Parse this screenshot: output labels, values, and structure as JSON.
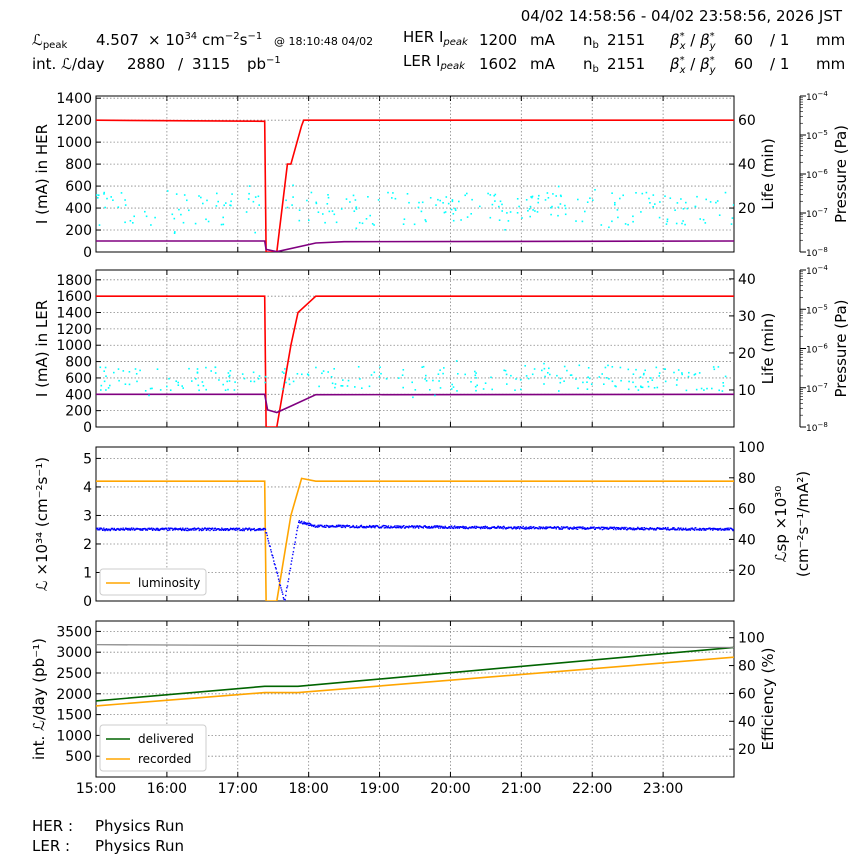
{
  "header": {
    "range": "04/02 14:58:56 - 04/02 23:58:56, 2026 JST",
    "lpeak_label": "ℒ",
    "lpeak_sub": "peak",
    "lpeak_value": "4.507",
    "lpeak_times": "× 10",
    "lpeak_exp": "34",
    "lpeak_unit_a": "cm",
    "lpeak_unit_exp1": "−2",
    "lpeak_unit_b": "s",
    "lpeak_unit_exp2": "−1",
    "lpeak_at": "@ 18:10:48 04/02",
    "intl_label": "int. ℒ/day",
    "intl_value": "2880",
    "intl_sep": "/",
    "intl_total": "3115",
    "intl_unit": "pb",
    "intl_unit_exp": "−1",
    "her": {
      "label": "HER I",
      "sub": "peak",
      "value": "1200",
      "unit": "mA",
      "nb_label": "n",
      "nb_sub": "b",
      "nb": "2151",
      "beta_label": "β",
      "beta_x": "60",
      "beta_sep": "/ 1",
      "beta_unit": "mm"
    },
    "ler": {
      "label": "LER I",
      "sub": "peak",
      "value": "1602",
      "unit": "mA",
      "nb_label": "n",
      "nb_sub": "b",
      "nb": "2151",
      "beta_label": "β",
      "beta_x": "60",
      "beta_sep": "/ 1",
      "beta_unit": "mm"
    }
  },
  "footer": {
    "her_label": "HER :",
    "her_status": "Physics Run",
    "ler_label": "LER :",
    "ler_status": "Physics Run"
  },
  "colors": {
    "current": "#ff0000",
    "life": "#800080",
    "pressure": "#00ffff",
    "luminosity": "#ffa500",
    "specific": "#0000ff",
    "delivered": "#006400",
    "recorded": "#ffa500",
    "efficiency": "#808080"
  },
  "chart_data": [
    {
      "type": "line",
      "x_ticks": [
        "15:00",
        "16:00",
        "17:00",
        "18:00",
        "19:00",
        "20:00",
        "21:00",
        "22:00",
        "23:00"
      ],
      "ylabel": "I (mA) in HER",
      "ylim": [
        0,
        1420
      ],
      "y_ticks": [
        "0",
        "200",
        "400",
        "600",
        "800",
        "1000",
        "1200",
        "1400"
      ],
      "y2label": "Life (min)",
      "y2lim": [
        0,
        71
      ],
      "y2_ticks": [
        "20",
        "40",
        "60"
      ],
      "y3label": "Pressure (Pa)",
      "y3_ticks": [
        "10",
        "10",
        "10",
        "10",
        "10",
        "10",
        "10"
      ],
      "y3_exps": [
        "−8",
        "−7",
        "−6",
        "−5",
        "−4",
        "",
        ""
      ],
      "y3_ticks_used": 5,
      "grid": true,
      "series": [
        {
          "name": "current",
          "x": [
            15.0,
            17.38,
            17.4,
            17.55,
            17.7,
            17.75,
            17.9,
            17.93,
            18.1,
            24.0
          ],
          "values": [
            1200,
            1190,
            0,
            0,
            800,
            800,
            1150,
            1200,
            1200,
            1200
          ]
        },
        {
          "name": "life",
          "x": [
            15.0,
            17.38,
            17.4,
            17.55,
            18.1,
            18.5,
            24.0
          ],
          "values": [
            8.5,
            8.5,
            2.0,
            0.2,
            7.0,
            8.0,
            8.5
          ]
        },
        {
          "name": "pressure_scatter",
          "y_mean": 400,
          "y_spread": 150
        }
      ]
    },
    {
      "type": "line",
      "x_ticks": [
        "15:00",
        "16:00",
        "17:00",
        "18:00",
        "19:00",
        "20:00",
        "21:00",
        "22:00",
        "23:00"
      ],
      "ylabel": "I (mA) in LER",
      "ylim": [
        0,
        1920
      ],
      "y_ticks": [
        "0",
        "200",
        "400",
        "600",
        "800",
        "1000",
        "1200",
        "1400",
        "1600",
        "1800"
      ],
      "y2label": "Life (min)",
      "y2lim": [
        0,
        42.4
      ],
      "y2_ticks": [
        "10",
        "20",
        "30",
        "40"
      ],
      "y3label": "Pressure (Pa)",
      "y3_ticks": [
        "10",
        "10",
        "10",
        "10",
        "10"
      ],
      "y3_exps": [
        "−8",
        "−7",
        "−6",
        "−5",
        "−4"
      ],
      "grid": true,
      "series": [
        {
          "name": "current",
          "x": [
            15.0,
            17.38,
            17.4,
            17.55,
            17.75,
            17.85,
            18.1,
            24.0
          ],
          "values": [
            1600,
            1600,
            0,
            0,
            1000,
            1400,
            1600,
            1600
          ]
        },
        {
          "name": "life",
          "x": [
            15.0,
            17.38,
            17.42,
            17.55,
            17.75,
            18.1,
            24.0
          ],
          "values": [
            8.6,
            8.6,
            4.5,
            3.8,
            5.5,
            8.5,
            8.6
          ]
        },
        {
          "name": "pressure_scatter",
          "y_mean": 600,
          "y_spread": 150
        }
      ]
    },
    {
      "type": "line",
      "x_ticks": [
        "15:00",
        "16:00",
        "17:00",
        "18:00",
        "19:00",
        "20:00",
        "21:00",
        "22:00",
        "23:00"
      ],
      "ylabel": "ℒ ×10³⁴ (cm⁻²s⁻¹)",
      "ylim": [
        0,
        5.4
      ],
      "y_ticks": [
        "0",
        "1",
        "2",
        "3",
        "4",
        "5"
      ],
      "y2label_a": "ℒsp ×10³⁰",
      "y2label_b": "(cm⁻²s⁻¹/mA²)",
      "y2lim": [
        0,
        100
      ],
      "y2_ticks": [
        "20",
        "40",
        "60",
        "80",
        "100"
      ],
      "grid": true,
      "legend": {
        "placement": "bottom-left",
        "entries": [
          "luminosity"
        ]
      },
      "series": [
        {
          "name": "luminosity",
          "x": [
            15.0,
            17.38,
            17.4,
            17.55,
            17.75,
            17.9,
            18.1,
            24.0
          ],
          "values": [
            4.2,
            4.2,
            0,
            0,
            3.0,
            4.3,
            4.2,
            4.2
          ]
        },
        {
          "name": "specific",
          "x": [
            15.0,
            17.38,
            17.65,
            17.85,
            18.1,
            24.0
          ],
          "values": [
            47,
            47,
            0,
            52,
            49,
            47
          ]
        }
      ]
    },
    {
      "type": "line",
      "x_ticks": [
        "15:00",
        "16:00",
        "17:00",
        "18:00",
        "19:00",
        "20:00",
        "21:00",
        "22:00",
        "23:00"
      ],
      "ylabel": "int. ℒ/day (pb⁻¹)",
      "ylim": [
        0,
        3750
      ],
      "y_ticks": [
        "500",
        "1000",
        "1500",
        "2000",
        "2500",
        "3000",
        "3500"
      ],
      "y2label": "Efficiency (%)",
      "y2lim": [
        0,
        112
      ],
      "y2_ticks": [
        "20",
        "40",
        "60",
        "80",
        "100"
      ],
      "grid": true,
      "legend": {
        "placement": "bottom-left",
        "entries": [
          "delivered",
          "recorded"
        ]
      },
      "series": [
        {
          "name": "delivered",
          "x": [
            15.0,
            17.38,
            17.85,
            24.0
          ],
          "values": [
            1830,
            2180,
            2180,
            3115
          ]
        },
        {
          "name": "recorded",
          "x": [
            15.0,
            17.38,
            17.85,
            24.0
          ],
          "values": [
            1710,
            2030,
            2030,
            2880
          ]
        },
        {
          "name": "efficiency",
          "x": [
            15.0,
            24.0
          ],
          "values": [
            95,
            93
          ]
        }
      ]
    }
  ]
}
